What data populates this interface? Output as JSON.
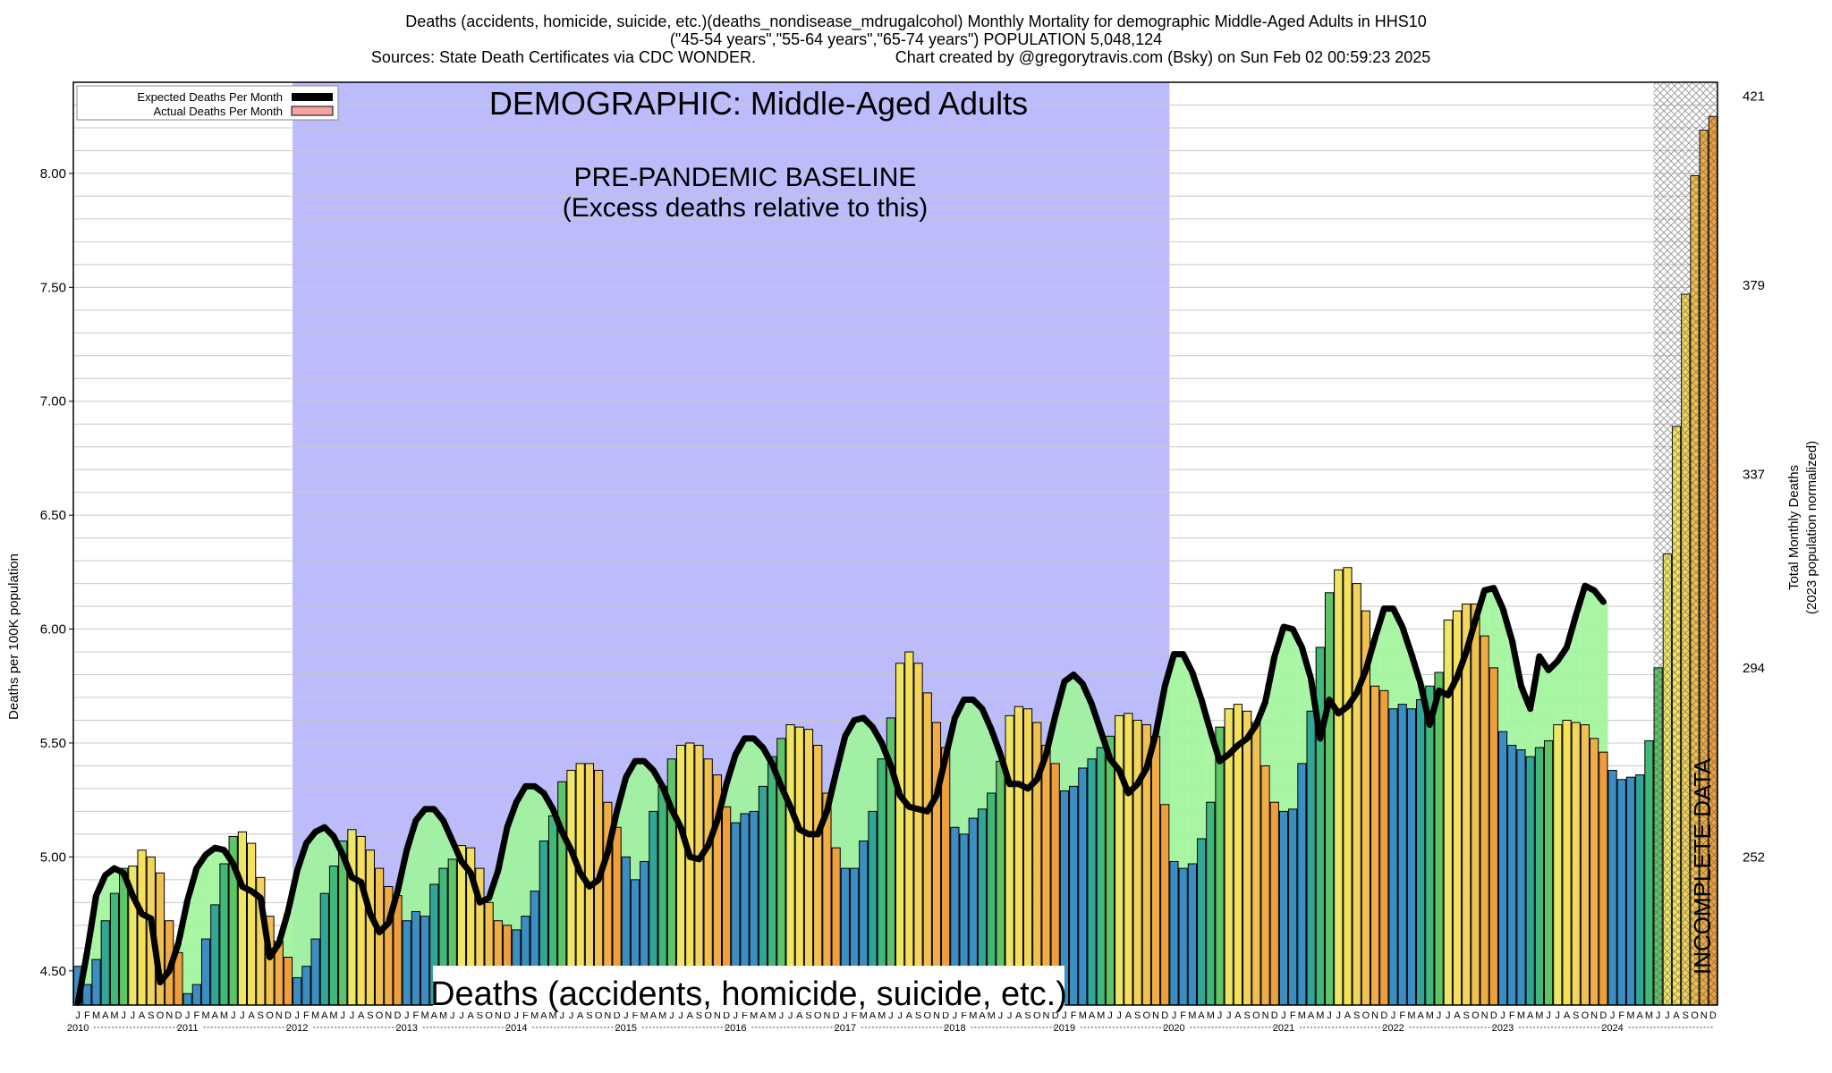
{
  "title": {
    "line1": "Deaths (accidents, homicide, suicide, etc.)(deaths_nondisease_mdrugalcohol) Monthly Mortality for demographic Middle-Aged Adults in HHS10",
    "line2": "(\"45-54 years\",\"55-64 years\",\"65-74 years\") POPULATION 5,048,124",
    "line3a": "Sources: State Death Certificates via CDC WONDER.",
    "line3b": "Chart created by @gregorytravis.com (Bsky) on Sun Feb 02 00:59:23 2025"
  },
  "annotations": {
    "demographic": "DEMOGRAPHIC: Middle-Aged Adults",
    "baseline_line1": "PRE-PANDEMIC BASELINE",
    "baseline_line2": "(Excess deaths relative to this)",
    "category": "Deaths (accidents, homicide, suicide, etc.)",
    "incomplete": "INCOMPLETE DATA"
  },
  "legend": {
    "expected": "Expected Deaths Per Month",
    "actual": "Actual Deaths Per Month"
  },
  "colors": {
    "baseline_region": "#bcbcfc",
    "expected_line": "#000000",
    "actual_swatch": "#f4a3a0",
    "excess": "#f5a09b",
    "deficit": "#9ef59a",
    "month_colors": [
      "#3b8ec2",
      "#3b8ec2",
      "#3b8ec2",
      "#32a596",
      "#41b77a",
      "#5ec466",
      "#eee666",
      "#f6e15c",
      "#f1d55f",
      "#f0c050",
      "#f0ac47",
      "#ee9e3c"
    ]
  },
  "chart_data": {
    "type": "bar",
    "ylabel": "Deaths per 100K population",
    "y2label_line1": "Total Monthly Deaths",
    "y2label_line2": "(2023 population normalized)",
    "ylim": [
      4.35,
      8.4
    ],
    "yticks": [
      "4.50",
      "5.00",
      "5.50",
      "6.00",
      "6.50",
      "7.00",
      "7.50",
      "8.00"
    ],
    "y2ticks": [
      "252",
      "294",
      "337",
      "379",
      "421"
    ],
    "y2tick_values": [
      5.0,
      5.83,
      6.68,
      7.51,
      8.34
    ],
    "start": "2010-01",
    "month_letters": [
      "J",
      "F",
      "M",
      "A",
      "M",
      "J",
      "J",
      "A",
      "S",
      "O",
      "N",
      "D"
    ],
    "year_labels": [
      "2010",
      "2011",
      "2012",
      "2013",
      "2014",
      "2015",
      "2016",
      "2017",
      "2018",
      "2019",
      "2020",
      "2021",
      "2022",
      "2023",
      "2024"
    ],
    "baseline_period": [
      "2012-01",
      "2019-12"
    ],
    "incomplete_from": "2024-07",
    "actual": [
      4.52,
      4.44,
      4.55,
      4.72,
      4.84,
      4.95,
      4.96,
      5.03,
      5.0,
      4.93,
      4.72,
      4.58,
      4.4,
      4.44,
      4.64,
      4.79,
      4.97,
      5.09,
      5.11,
      5.06,
      4.91,
      4.74,
      4.63,
      4.56,
      4.47,
      4.52,
      4.64,
      4.84,
      4.96,
      5.07,
      5.12,
      5.09,
      5.03,
      4.95,
      4.87,
      4.83,
      4.72,
      4.76,
      4.74,
      4.88,
      4.95,
      4.99,
      5.05,
      5.04,
      4.95,
      4.8,
      4.72,
      4.7,
      4.68,
      4.74,
      4.85,
      5.07,
      5.18,
      5.33,
      5.38,
      5.41,
      5.41,
      5.38,
      5.24,
      5.13,
      5.0,
      4.9,
      4.98,
      5.2,
      5.31,
      5.43,
      5.49,
      5.5,
      5.49,
      5.43,
      5.36,
      5.22,
      5.15,
      5.19,
      5.2,
      5.31,
      5.44,
      5.52,
      5.58,
      5.57,
      5.56,
      5.49,
      5.28,
      5.04,
      4.95,
      4.95,
      5.07,
      5.2,
      5.43,
      5.61,
      5.85,
      5.9,
      5.85,
      5.72,
      5.59,
      5.48,
      5.13,
      5.1,
      5.17,
      5.21,
      5.28,
      5.42,
      5.62,
      5.66,
      5.65,
      5.59,
      5.49,
      5.41,
      5.29,
      5.31,
      5.39,
      5.43,
      5.48,
      5.53,
      5.62,
      5.63,
      5.6,
      5.58,
      5.53,
      5.23,
      4.98,
      4.95,
      4.97,
      5.08,
      5.24,
      5.57,
      5.65,
      5.67,
      5.64,
      5.59,
      5.4,
      5.24,
      5.2,
      5.21,
      5.41,
      5.64,
      5.92,
      6.16,
      6.26,
      6.27,
      6.2,
      6.08,
      5.75,
      5.73,
      5.65,
      5.67,
      5.65,
      5.69,
      5.75,
      5.81,
      6.04,
      6.08,
      6.11,
      6.11,
      5.97,
      5.83,
      5.55,
      5.49,
      5.47,
      5.44,
      5.48,
      5.51,
      5.58,
      5.6,
      5.59,
      5.58,
      5.52,
      5.46,
      5.38,
      5.34,
      5.35,
      5.36,
      5.51,
      5.83,
      6.33,
      6.89,
      7.47,
      7.99,
      8.19,
      8.25
    ],
    "expected": [
      4.36,
      4.58,
      4.83,
      4.92,
      4.95,
      4.93,
      4.83,
      4.75,
      4.73,
      4.45,
      4.5,
      4.62,
      4.81,
      4.95,
      5.01,
      5.04,
      5.03,
      4.97,
      4.87,
      4.85,
      4.82,
      4.56,
      4.62,
      4.76,
      4.94,
      5.06,
      5.11,
      5.13,
      5.09,
      5.01,
      4.91,
      4.89,
      4.75,
      4.67,
      4.71,
      4.85,
      5.03,
      5.16,
      5.21,
      5.21,
      5.16,
      5.07,
      4.98,
      4.93,
      4.8,
      4.82,
      4.94,
      5.13,
      5.24,
      5.31,
      5.31,
      5.28,
      5.21,
      5.11,
      5.03,
      4.93,
      4.87,
      4.9,
      5.02,
      5.2,
      5.35,
      5.42,
      5.42,
      5.38,
      5.31,
      5.21,
      5.13,
      5.0,
      4.99,
      5.05,
      5.16,
      5.32,
      5.45,
      5.52,
      5.52,
      5.48,
      5.41,
      5.31,
      5.22,
      5.12,
      5.1,
      5.1,
      5.2,
      5.37,
      5.53,
      5.6,
      5.61,
      5.57,
      5.5,
      5.4,
      5.27,
      5.22,
      5.21,
      5.2,
      5.27,
      5.44,
      5.61,
      5.69,
      5.69,
      5.65,
      5.56,
      5.45,
      5.32,
      5.32,
      5.3,
      5.34,
      5.45,
      5.62,
      5.77,
      5.8,
      5.76,
      5.67,
      5.55,
      5.43,
      5.38,
      5.28,
      5.32,
      5.39,
      5.54,
      5.75,
      5.89,
      5.89,
      5.81,
      5.69,
      5.55,
      5.42,
      5.45,
      5.49,
      5.52,
      5.58,
      5.68,
      5.88,
      6.01,
      6.0,
      5.92,
      5.78,
      5.52,
      5.69,
      5.63,
      5.66,
      5.72,
      5.82,
      5.96,
      6.09,
      6.09,
      6.01,
      5.89,
      5.76,
      5.58,
      5.73,
      5.71,
      5.79,
      5.9,
      6.04,
      6.17,
      6.18,
      6.09,
      5.95,
      5.75,
      5.65,
      5.88,
      5.82,
      5.86,
      5.92,
      6.06,
      6.19,
      6.17,
      6.12
    ]
  }
}
